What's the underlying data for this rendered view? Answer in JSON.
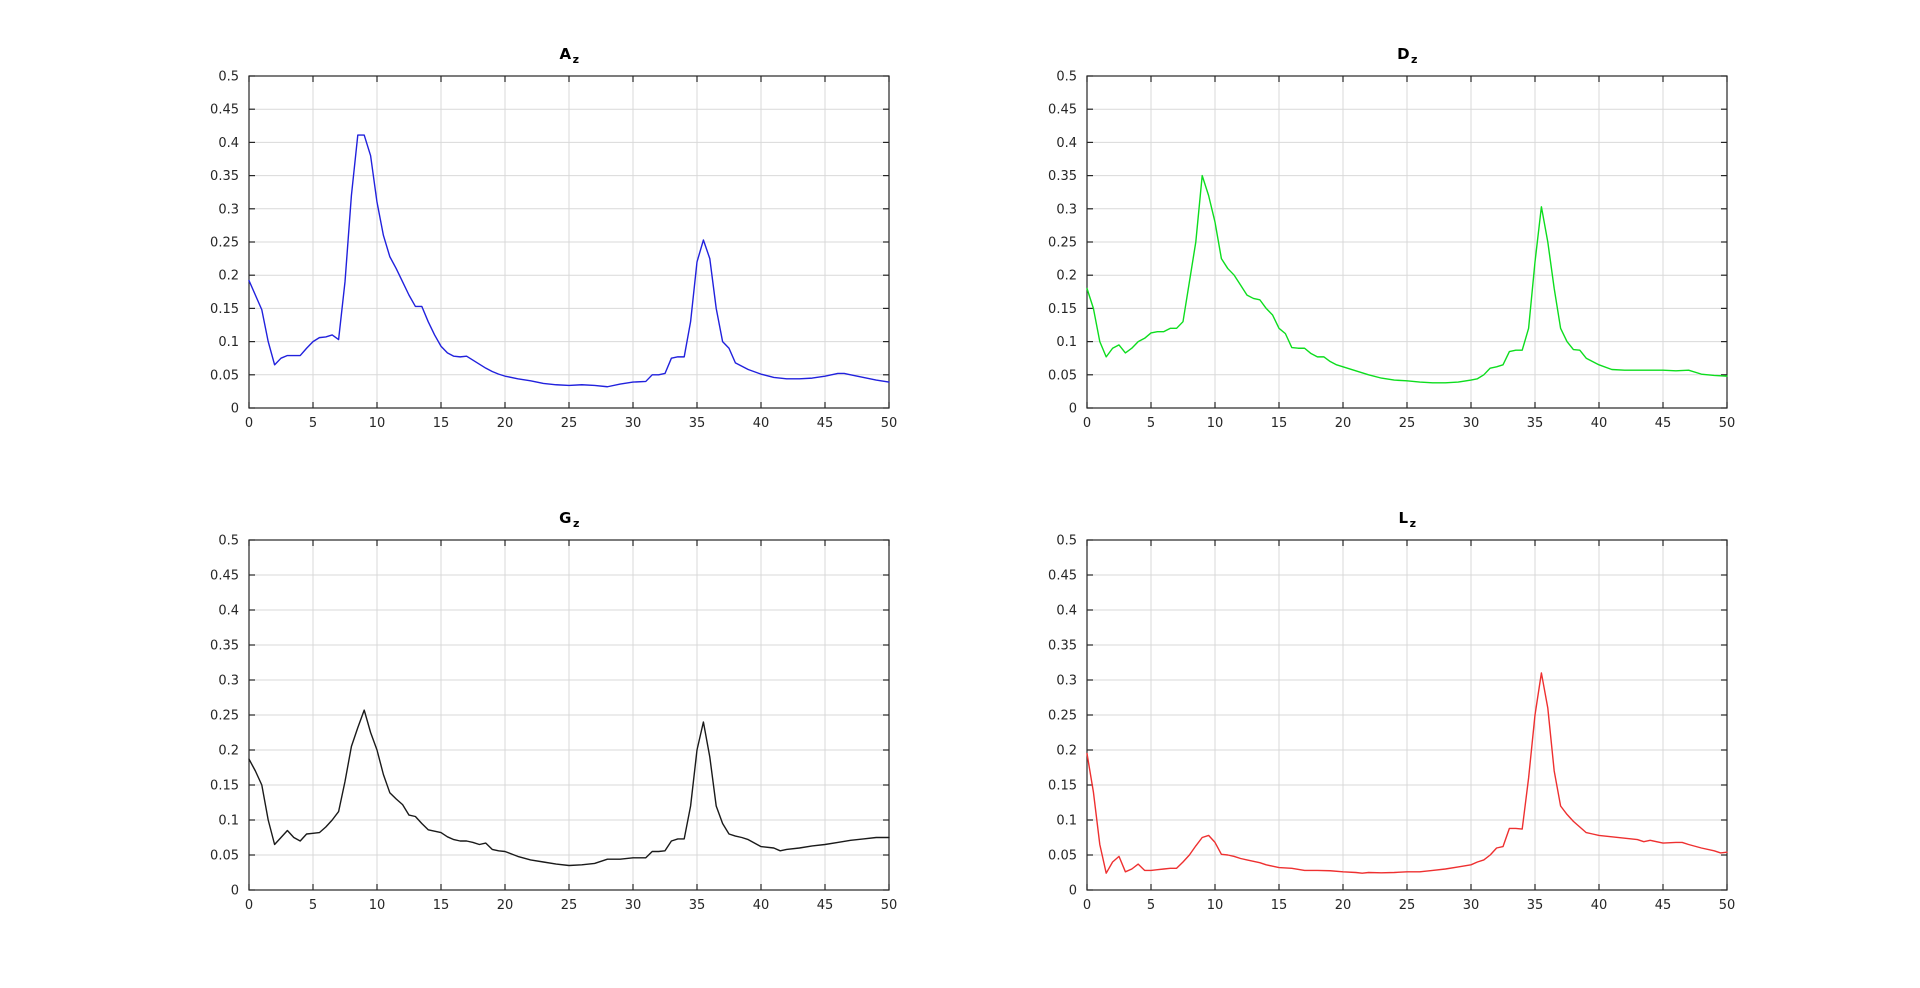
{
  "figure": {
    "background": "#ffffff",
    "grid_color": "#d9d9d9",
    "axis_color": "#262626",
    "tick_label_color": "#3b3b3b"
  },
  "chart_data": [
    {
      "type": "line",
      "title": "A",
      "title_sub": "z",
      "color": "#2121dd",
      "xlabel": "",
      "ylabel": "",
      "xlim": [
        0,
        50
      ],
      "ylim": [
        0,
        0.5
      ],
      "grid": true,
      "xticks": [
        0,
        5,
        10,
        15,
        20,
        25,
        30,
        35,
        40,
        45,
        50
      ],
      "xtick_labels": [
        "0",
        "5",
        "10",
        "15",
        "20",
        "25",
        "30",
        "35",
        "40",
        "45",
        "50"
      ],
      "yticks": [
        0,
        0.05,
        0.1,
        0.15,
        0.2,
        0.25,
        0.3,
        0.35,
        0.4,
        0.45,
        0.5
      ],
      "ytick_labels": [
        "0",
        "0.05",
        "0.1",
        "0.15",
        "0.2",
        "0.25",
        "0.3",
        "0.35",
        "0.4",
        "0.45",
        "0.5"
      ],
      "x": [
        0,
        0.5,
        1,
        1.5,
        2,
        2.5,
        3,
        4,
        4.5,
        5,
        5.5,
        6,
        6.5,
        7,
        7.5,
        8,
        8.5,
        9,
        9.5,
        10,
        10.5,
        11,
        11.5,
        12,
        12.5,
        13,
        13.5,
        14,
        14.5,
        15,
        15.5,
        16,
        16.5,
        17,
        17.5,
        18,
        18.5,
        19,
        19.5,
        20,
        21,
        22,
        23,
        24,
        25,
        26,
        27,
        28,
        29,
        30,
        31,
        31.5,
        32,
        32.5,
        33,
        33.5,
        34,
        34.5,
        35,
        35.5,
        36,
        36.5,
        37,
        37.5,
        38,
        39,
        40,
        41,
        42,
        43,
        44,
        45,
        46,
        46.5,
        47,
        48,
        49,
        50
      ],
      "y": [
        0.192,
        0.17,
        0.148,
        0.1,
        0.065,
        0.075,
        0.079,
        0.079,
        0.09,
        0.1,
        0.106,
        0.107,
        0.11,
        0.103,
        0.19,
        0.32,
        0.411,
        0.411,
        0.38,
        0.31,
        0.26,
        0.228,
        0.21,
        0.19,
        0.17,
        0.153,
        0.153,
        0.13,
        0.11,
        0.093,
        0.083,
        0.078,
        0.077,
        0.078,
        0.072,
        0.066,
        0.06,
        0.055,
        0.051,
        0.048,
        0.044,
        0.041,
        0.037,
        0.035,
        0.034,
        0.035,
        0.034,
        0.032,
        0.036,
        0.039,
        0.04,
        0.05,
        0.05,
        0.052,
        0.075,
        0.077,
        0.077,
        0.13,
        0.22,
        0.253,
        0.225,
        0.15,
        0.1,
        0.09,
        0.068,
        0.058,
        0.051,
        0.046,
        0.044,
        0.044,
        0.045,
        0.048,
        0.052,
        0.052,
        0.05,
        0.046,
        0.042,
        0.039
      ]
    },
    {
      "type": "line",
      "title": "D",
      "title_sub": "z",
      "color": "#0ddd1e",
      "xlabel": "",
      "ylabel": "",
      "xlim": [
        0,
        50
      ],
      "ylim": [
        0,
        0.5
      ],
      "grid": true,
      "xticks": [
        0,
        5,
        10,
        15,
        20,
        25,
        30,
        35,
        40,
        45,
        50
      ],
      "xtick_labels": [
        "0",
        "5",
        "10",
        "15",
        "20",
        "25",
        "30",
        "35",
        "40",
        "45",
        "50"
      ],
      "yticks": [
        0,
        0.05,
        0.1,
        0.15,
        0.2,
        0.25,
        0.3,
        0.35,
        0.4,
        0.45,
        0.5
      ],
      "ytick_labels": [
        "0",
        "0.05",
        "0.1",
        "0.15",
        "0.2",
        "0.25",
        "0.3",
        "0.35",
        "0.4",
        "0.45",
        "0.5"
      ],
      "x": [
        0,
        0.5,
        1,
        1.5,
        2,
        2.5,
        3,
        3.5,
        4,
        4.5,
        5,
        5.5,
        6,
        6.5,
        7,
        7.5,
        8,
        8.5,
        9,
        9.5,
        10,
        10.5,
        11,
        11.5,
        12,
        12.5,
        13,
        13.5,
        14,
        14.5,
        15,
        15.5,
        16,
        16.5,
        17,
        17.5,
        18,
        18.5,
        19,
        19.5,
        20,
        21,
        22,
        23,
        24,
        25,
        26,
        27,
        28,
        29,
        30,
        30.5,
        31,
        31.5,
        32,
        32.5,
        33,
        33.5,
        34,
        34.5,
        35,
        35.5,
        36,
        36.5,
        37,
        37.5,
        38,
        38.5,
        39,
        40,
        41,
        42,
        43,
        44,
        45,
        46,
        47,
        48,
        49,
        50
      ],
      "y": [
        0.18,
        0.15,
        0.1,
        0.077,
        0.09,
        0.095,
        0.083,
        0.09,
        0.1,
        0.105,
        0.113,
        0.115,
        0.115,
        0.12,
        0.12,
        0.13,
        0.19,
        0.25,
        0.35,
        0.32,
        0.28,
        0.225,
        0.21,
        0.2,
        0.185,
        0.17,
        0.165,
        0.163,
        0.15,
        0.14,
        0.12,
        0.112,
        0.091,
        0.09,
        0.09,
        0.082,
        0.077,
        0.077,
        0.07,
        0.065,
        0.062,
        0.056,
        0.05,
        0.045,
        0.042,
        0.041,
        0.039,
        0.038,
        0.038,
        0.039,
        0.042,
        0.044,
        0.05,
        0.06,
        0.062,
        0.065,
        0.085,
        0.087,
        0.087,
        0.12,
        0.22,
        0.303,
        0.25,
        0.18,
        0.12,
        0.1,
        0.088,
        0.087,
        0.075,
        0.065,
        0.058,
        0.057,
        0.057,
        0.057,
        0.057,
        0.056,
        0.057,
        0.051,
        0.049,
        0.048
      ]
    },
    {
      "type": "line",
      "title": "G",
      "title_sub": "z",
      "color": "#1a1a1a",
      "xlabel": "",
      "ylabel": "",
      "xlim": [
        0,
        50
      ],
      "ylim": [
        0,
        0.5
      ],
      "grid": true,
      "xticks": [
        0,
        5,
        10,
        15,
        20,
        25,
        30,
        35,
        40,
        45,
        50
      ],
      "xtick_labels": [
        "0",
        "5",
        "10",
        "15",
        "20",
        "25",
        "30",
        "35",
        "40",
        "45",
        "50"
      ],
      "yticks": [
        0,
        0.05,
        0.1,
        0.15,
        0.2,
        0.25,
        0.3,
        0.35,
        0.4,
        0.45,
        0.5
      ],
      "ytick_labels": [
        "0",
        "0.05",
        "0.1",
        "0.15",
        "0.2",
        "0.25",
        "0.3",
        "0.35",
        "0.4",
        "0.45",
        "0.5"
      ],
      "x": [
        0,
        0.5,
        1,
        1.5,
        2,
        2.5,
        3,
        3.5,
        4,
        4.5,
        5,
        5.5,
        6,
        6.5,
        7,
        7.5,
        8,
        8.5,
        9,
        9.5,
        10,
        10.5,
        11,
        11.5,
        12,
        12.5,
        13,
        13.5,
        14,
        14.5,
        15,
        15.5,
        16,
        16.5,
        17,
        17.5,
        18,
        18.5,
        19,
        19.5,
        20,
        21,
        22,
        23,
        24,
        25,
        26,
        27,
        28,
        29,
        30,
        31,
        31.5,
        32,
        32.5,
        33,
        33.5,
        34,
        34.5,
        35,
        35.5,
        36,
        36.5,
        37,
        37.5,
        38,
        38.5,
        39,
        40,
        41,
        41.5,
        42,
        43,
        44,
        45,
        46,
        47,
        48,
        49,
        50
      ],
      "y": [
        0.187,
        0.17,
        0.15,
        0.1,
        0.065,
        0.075,
        0.085,
        0.075,
        0.07,
        0.08,
        0.081,
        0.082,
        0.09,
        0.1,
        0.112,
        0.155,
        0.205,
        0.232,
        0.257,
        0.225,
        0.2,
        0.165,
        0.139,
        0.13,
        0.122,
        0.107,
        0.105,
        0.095,
        0.086,
        0.084,
        0.082,
        0.076,
        0.072,
        0.07,
        0.07,
        0.068,
        0.065,
        0.067,
        0.058,
        0.056,
        0.055,
        0.048,
        0.043,
        0.04,
        0.037,
        0.035,
        0.036,
        0.038,
        0.044,
        0.044,
        0.046,
        0.046,
        0.055,
        0.055,
        0.056,
        0.07,
        0.073,
        0.073,
        0.12,
        0.2,
        0.24,
        0.19,
        0.12,
        0.095,
        0.08,
        0.077,
        0.075,
        0.072,
        0.062,
        0.06,
        0.056,
        0.058,
        0.06,
        0.063,
        0.065,
        0.068,
        0.071,
        0.073,
        0.075,
        0.075
      ]
    },
    {
      "type": "line",
      "title": "L",
      "title_sub": "z",
      "color": "#ee3030",
      "xlabel": "",
      "ylabel": "",
      "xlim": [
        0,
        50
      ],
      "ylim": [
        0,
        0.5
      ],
      "grid": true,
      "xticks": [
        0,
        5,
        10,
        15,
        20,
        25,
        30,
        35,
        40,
        45,
        50
      ],
      "xtick_labels": [
        "0",
        "5",
        "10",
        "15",
        "20",
        "25",
        "30",
        "35",
        "40",
        "45",
        "50"
      ],
      "yticks": [
        0,
        0.05,
        0.1,
        0.15,
        0.2,
        0.25,
        0.3,
        0.35,
        0.4,
        0.45,
        0.5
      ],
      "ytick_labels": [
        "0",
        "0.05",
        "0.1",
        "0.15",
        "0.2",
        "0.25",
        "0.3",
        "0.35",
        "0.4",
        "0.45",
        "0.5"
      ],
      "x": [
        0,
        0.5,
        1,
        1.5,
        2,
        2.5,
        3,
        3.5,
        4,
        4.5,
        5,
        5.5,
        6,
        6.5,
        7,
        7.5,
        8,
        8.5,
        9,
        9.5,
        10,
        10.5,
        11,
        11.5,
        12,
        12.5,
        13,
        13.5,
        14,
        14.5,
        15,
        16,
        17,
        18,
        19,
        20,
        21,
        21.5,
        22,
        23,
        24,
        25,
        26,
        27,
        28,
        29,
        30,
        30.5,
        31,
        31.5,
        32,
        32.5,
        33,
        33.5,
        34,
        34.5,
        35,
        35.5,
        36,
        36.5,
        37,
        37.5,
        38,
        38.5,
        39,
        39.5,
        40,
        41,
        42,
        43,
        43.5,
        44,
        45,
        46,
        46.5,
        47,
        48,
        49,
        49.5,
        50
      ],
      "y": [
        0.195,
        0.14,
        0.065,
        0.024,
        0.04,
        0.048,
        0.026,
        0.03,
        0.037,
        0.028,
        0.028,
        0.029,
        0.03,
        0.031,
        0.031,
        0.04,
        0.05,
        0.063,
        0.075,
        0.078,
        0.068,
        0.051,
        0.05,
        0.048,
        0.045,
        0.043,
        0.041,
        0.039,
        0.036,
        0.034,
        0.032,
        0.031,
        0.028,
        0.028,
        0.0275,
        0.026,
        0.025,
        0.024,
        0.025,
        0.0245,
        0.025,
        0.026,
        0.026,
        0.028,
        0.03,
        0.033,
        0.036,
        0.04,
        0.043,
        0.05,
        0.06,
        0.062,
        0.088,
        0.088,
        0.087,
        0.16,
        0.25,
        0.31,
        0.26,
        0.17,
        0.12,
        0.108,
        0.098,
        0.09,
        0.082,
        0.08,
        0.078,
        0.076,
        0.074,
        0.072,
        0.069,
        0.071,
        0.067,
        0.068,
        0.068,
        0.065,
        0.06,
        0.056,
        0.053,
        0.054
      ]
    }
  ]
}
